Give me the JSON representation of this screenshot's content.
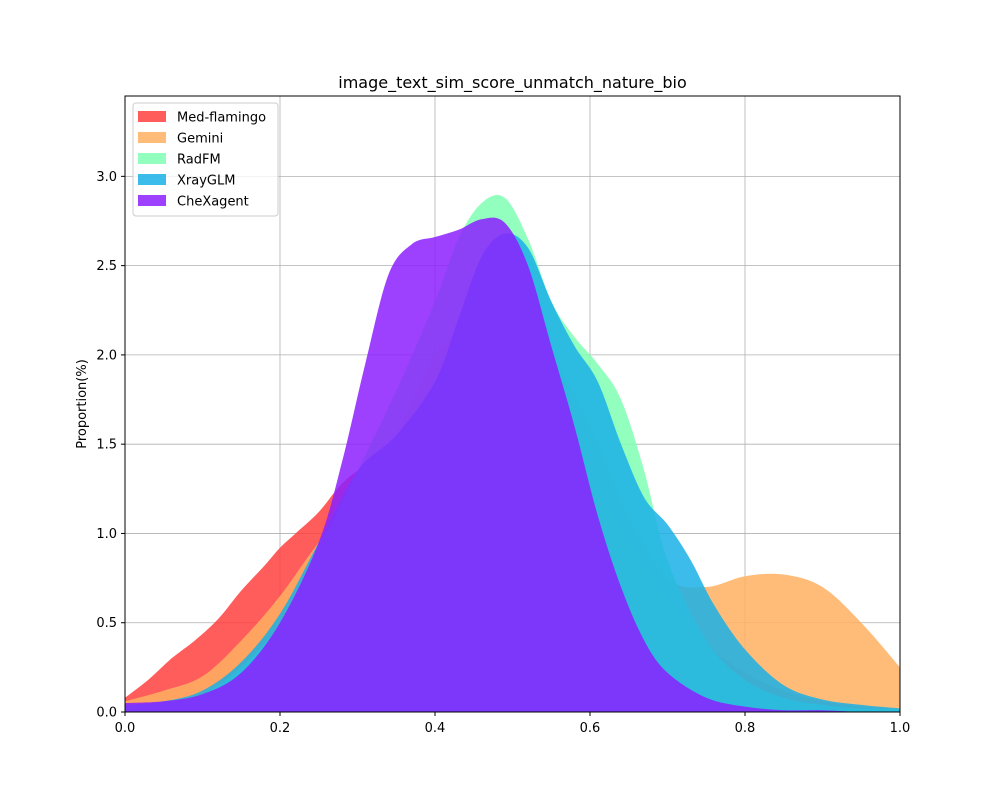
{
  "chart_data": {
    "type": "area",
    "title": "image_text_sim_score_unmatch_nature_bio",
    "xlabel": "",
    "ylabel": "Proportion(%)",
    "xlim": [
      0.0,
      1.0
    ],
    "ylim": [
      0.0,
      3.45
    ],
    "x_ticks": [
      0.0,
      0.2,
      0.4,
      0.6,
      0.8,
      1.0
    ],
    "x_tick_labels": [
      "0.0",
      "0.2",
      "0.4",
      "0.6",
      "0.8",
      "1.0"
    ],
    "y_ticks": [
      0.0,
      0.5,
      1.0,
      1.5,
      2.0,
      2.5,
      3.0
    ],
    "y_tick_labels": [
      "0.0",
      "0.5",
      "1.0",
      "1.5",
      "2.0",
      "2.5",
      "3.0"
    ],
    "grid": true,
    "legend_position": "top-left",
    "series": [
      {
        "name": "Med-flamingo",
        "color": "#ff4040",
        "x": [
          0.0,
          0.03,
          0.06,
          0.09,
          0.12,
          0.15,
          0.18,
          0.2,
          0.22,
          0.25,
          0.28,
          0.31,
          0.34,
          0.37,
          0.4,
          0.43,
          0.46,
          0.5,
          0.55,
          0.6,
          0.65,
          0.7,
          0.75,
          0.8,
          0.85,
          0.9,
          0.95,
          1.0
        ],
        "y": [
          0.08,
          0.18,
          0.3,
          0.4,
          0.52,
          0.68,
          0.82,
          0.92,
          1.0,
          1.12,
          1.28,
          1.38,
          1.45,
          1.55,
          1.65,
          1.85,
          1.95,
          1.88,
          1.6,
          1.28,
          0.95,
          0.62,
          0.38,
          0.22,
          0.12,
          0.06,
          0.03,
          0.02
        ]
      },
      {
        "name": "Gemini",
        "color": "#ffb060",
        "x": [
          0.0,
          0.05,
          0.1,
          0.15,
          0.2,
          0.25,
          0.3,
          0.35,
          0.4,
          0.45,
          0.5,
          0.55,
          0.6,
          0.65,
          0.7,
          0.75,
          0.8,
          0.85,
          0.9,
          0.95,
          1.0
        ],
        "y": [
          0.06,
          0.12,
          0.2,
          0.4,
          0.65,
          0.95,
          1.2,
          1.55,
          2.0,
          2.15,
          2.18,
          2.0,
          1.6,
          1.1,
          0.75,
          0.7,
          0.76,
          0.77,
          0.7,
          0.5,
          0.25
        ]
      },
      {
        "name": "RadFM",
        "color": "#80ffb4",
        "x": [
          0.0,
          0.05,
          0.1,
          0.15,
          0.2,
          0.25,
          0.3,
          0.35,
          0.4,
          0.43,
          0.46,
          0.49,
          0.52,
          0.55,
          0.58,
          0.61,
          0.64,
          0.67,
          0.7,
          0.75,
          0.8,
          0.85,
          0.9,
          0.95,
          1.0
        ],
        "y": [
          0.04,
          0.05,
          0.1,
          0.25,
          0.5,
          0.9,
          1.35,
          1.8,
          2.3,
          2.65,
          2.85,
          2.88,
          2.65,
          2.3,
          2.1,
          1.95,
          1.75,
          1.35,
          0.85,
          0.4,
          0.18,
          0.08,
          0.04,
          0.02,
          0.02
        ]
      },
      {
        "name": "XrayGLM",
        "color": "#1ab0e6",
        "x": [
          0.0,
          0.05,
          0.1,
          0.15,
          0.2,
          0.25,
          0.3,
          0.35,
          0.4,
          0.43,
          0.46,
          0.49,
          0.52,
          0.55,
          0.58,
          0.61,
          0.64,
          0.67,
          0.7,
          0.73,
          0.76,
          0.8,
          0.85,
          0.9,
          0.95,
          1.0
        ],
        "y": [
          0.04,
          0.06,
          0.12,
          0.28,
          0.55,
          0.95,
          1.35,
          1.55,
          1.85,
          2.2,
          2.55,
          2.68,
          2.6,
          2.3,
          2.05,
          1.85,
          1.5,
          1.2,
          1.05,
          0.85,
          0.6,
          0.35,
          0.15,
          0.07,
          0.04,
          0.02
        ]
      },
      {
        "name": "CheXagent",
        "color": "#8c20ff",
        "x": [
          0.0,
          0.05,
          0.1,
          0.15,
          0.2,
          0.25,
          0.28,
          0.31,
          0.34,
          0.37,
          0.4,
          0.43,
          0.46,
          0.49,
          0.52,
          0.55,
          0.58,
          0.61,
          0.64,
          0.67,
          0.7,
          0.75,
          0.8,
          0.85,
          0.9,
          0.95,
          1.0
        ],
        "y": [
          0.05,
          0.06,
          0.1,
          0.22,
          0.5,
          0.95,
          1.4,
          1.95,
          2.45,
          2.62,
          2.66,
          2.7,
          2.76,
          2.74,
          2.5,
          2.05,
          1.6,
          1.1,
          0.7,
          0.4,
          0.22,
          0.08,
          0.03,
          0.01,
          0.01,
          0.0,
          0.0
        ]
      }
    ]
  }
}
